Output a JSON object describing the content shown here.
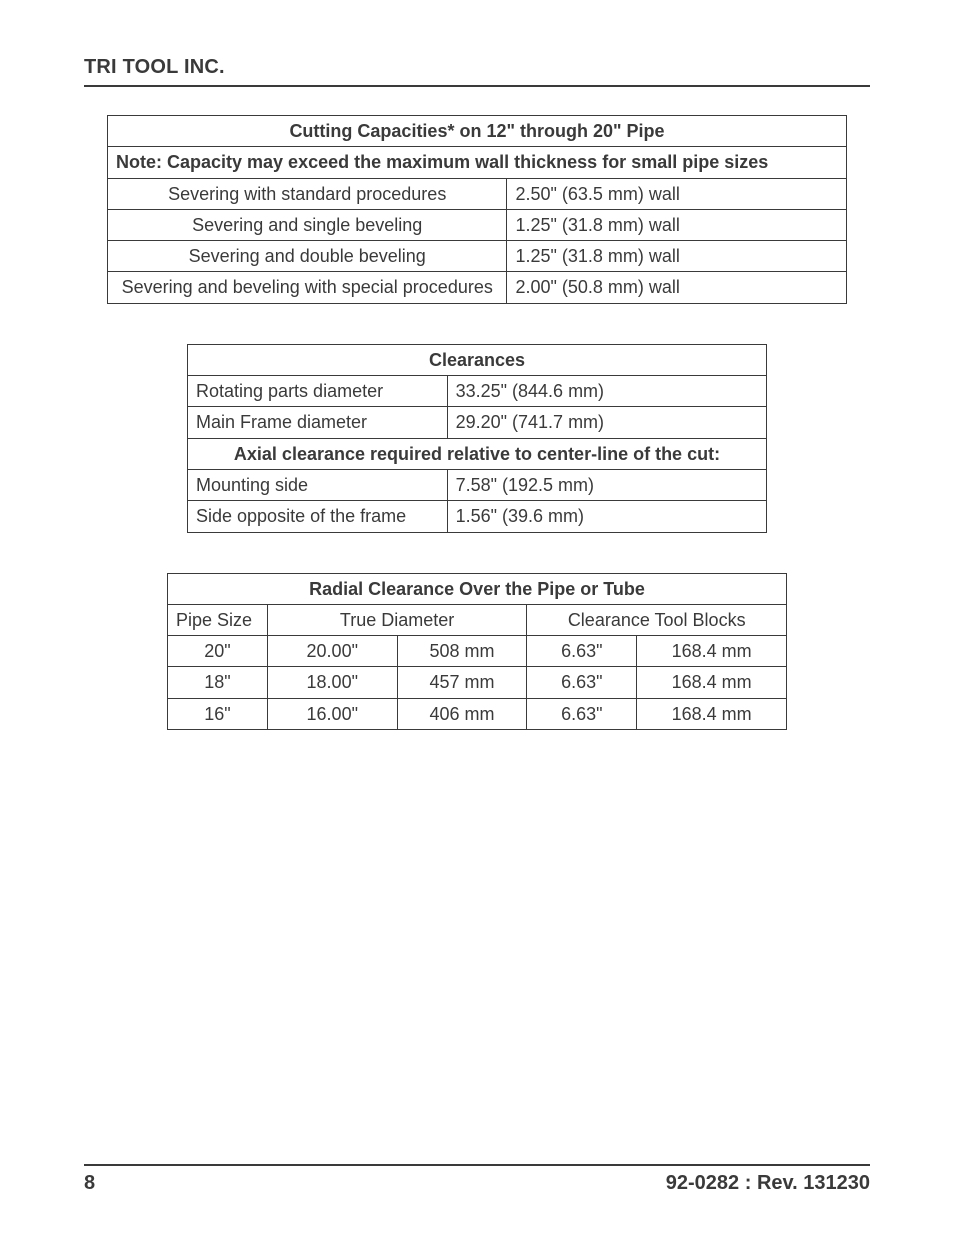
{
  "header": {
    "company": "TRI TOOL INC."
  },
  "table1": {
    "title": "Cutting Capacities* on 12\" through 20\" Pipe",
    "note": "Note: Capacity may exceed the maximum wall thickness for small pipe sizes",
    "rows": [
      {
        "label": "Severing with standard procedures",
        "value": "2.50\" (63.5 mm) wall"
      },
      {
        "label": "Severing and single beveling",
        "value": "1.25\" (31.8 mm) wall"
      },
      {
        "label": "Severing and double beveling",
        "value": "1.25\" (31.8 mm) wall"
      },
      {
        "label": "Severing and beveling with special procedures",
        "value": "2.00\" (50.8 mm) wall"
      }
    ]
  },
  "table2": {
    "title": "Clearances",
    "rows1": [
      {
        "label": "Rotating parts diameter",
        "value": "33.25\" (844.6 mm)"
      },
      {
        "label": "Main Frame diameter",
        "value": "29.20\" (741.7 mm)"
      }
    ],
    "subhead": "Axial clearance required relative to center-line of the cut:",
    "rows2": [
      {
        "label": "Mounting side",
        "value": "7.58\" (192.5 mm)"
      },
      {
        "label": "Side opposite of the frame",
        "value": "1.56\" (39.6 mm)"
      }
    ]
  },
  "table3": {
    "title": "Radial Clearance Over the Pipe or Tube",
    "headers": {
      "c1": "Pipe Size",
      "c2": "True Diameter",
      "c3": "Clearance Tool Blocks"
    },
    "rows": [
      {
        "size": "20\"",
        "td_in": "20.00\"",
        "td_mm": "508 mm",
        "cl_in": "6.63\"",
        "cl_mm": "168.4 mm"
      },
      {
        "size": "18\"",
        "td_in": "18.00\"",
        "td_mm": "457 mm",
        "cl_in": "6.63\"",
        "cl_mm": "168.4 mm"
      },
      {
        "size": "16\"",
        "td_in": "16.00\"",
        "td_mm": "406 mm",
        "cl_in": "6.63\"",
        "cl_mm": "168.4 mm"
      }
    ]
  },
  "footer": {
    "page": "8",
    "rev": "92-0282 : Rev. 131230"
  },
  "colors": {
    "text": "#3a3a3a",
    "border": "#3a3a3a",
    "bg": "#ffffff"
  }
}
